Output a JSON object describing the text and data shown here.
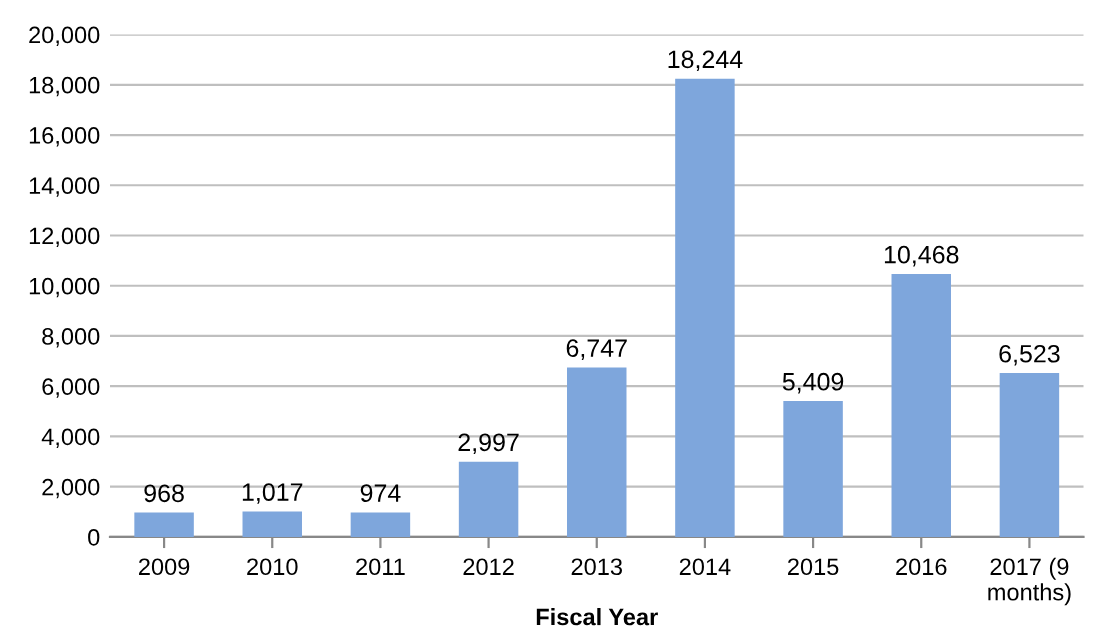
{
  "chart_data": {
    "type": "bar",
    "xlabel": "Fiscal Year",
    "categories": [
      "2009",
      "2010",
      "2011",
      "2012",
      "2013",
      "2014",
      "2015",
      "2016",
      "2017 (9\nmonths)"
    ],
    "values": [
      968,
      1017,
      974,
      2997,
      6747,
      18244,
      5409,
      10468,
      6523
    ],
    "color": "#7ea6dc",
    "ylim": [
      0,
      20000
    ],
    "yticks": [
      {
        "value": 0,
        "label": "0"
      },
      {
        "value": 2000,
        "label": "2,000"
      },
      {
        "value": 4000,
        "label": "4,000"
      },
      {
        "value": 6000,
        "label": "6,000"
      },
      {
        "value": 8000,
        "label": "8,000"
      },
      {
        "value": 10000,
        "label": "10,000"
      },
      {
        "value": 12000,
        "label": "12,000"
      },
      {
        "value": 14000,
        "label": "14,000"
      },
      {
        "value": 16000,
        "label": "16,000"
      },
      {
        "value": 18000,
        "label": "18,000"
      },
      {
        "value": 20000,
        "label": "20,000"
      }
    ],
    "value_labels": [
      "968",
      "1,017",
      "974",
      "2,997",
      "6,747",
      "18,244",
      "5,409",
      "10,468",
      "6,523"
    ],
    "grid": "y"
  }
}
